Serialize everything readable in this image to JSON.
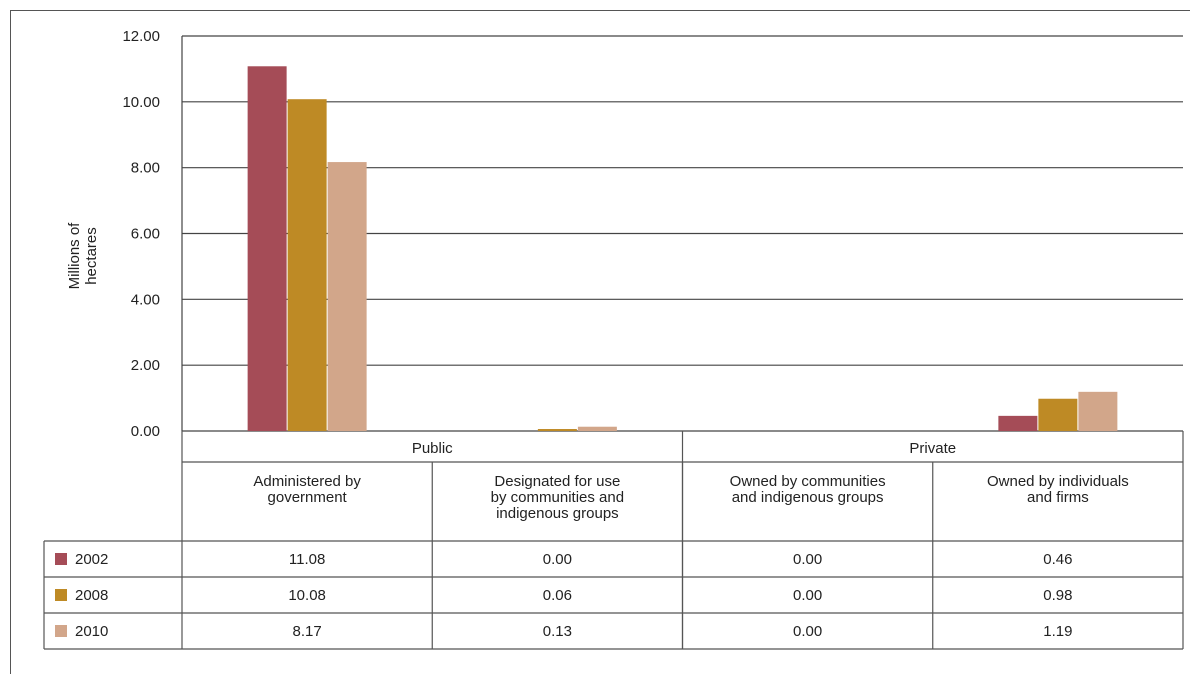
{
  "chart_data": {
    "type": "bar",
    "ylabel": "Millions of hectares",
    "ylim": [
      0,
      12
    ],
    "yticks": [
      "0.00",
      "2.00",
      "4.00",
      "6.00",
      "8.00",
      "10.00",
      "12.00"
    ],
    "groups": [
      {
        "label": "Public",
        "span": 2
      },
      {
        "label": "Private",
        "span": 2
      }
    ],
    "categories": [
      "Administered by government",
      "Designated for use by communities and indigenous groups",
      "Owned by communities and indigenous groups",
      "Owned by individuals and firms"
    ],
    "category_lines": [
      [
        "Administered by",
        "government"
      ],
      [
        "Designated for use",
        "by communities and",
        "indigenous groups"
      ],
      [
        "Owned by communities",
        "and indigenous groups"
      ],
      [
        "Owned by individuals",
        "and firms"
      ]
    ],
    "series": [
      {
        "name": "2002",
        "color": "#A54C57",
        "values": [
          11.08,
          0.0,
          0.0,
          0.46
        ],
        "labels": [
          "11.08",
          "0.00",
          "0.00",
          "0.46"
        ]
      },
      {
        "name": "2008",
        "color": "#BE8A25",
        "values": [
          10.08,
          0.06,
          0.0,
          0.98
        ],
        "labels": [
          "10.08",
          "0.06",
          "0.00",
          "0.98"
        ]
      },
      {
        "name": "2010",
        "color": "#D2A68A",
        "values": [
          8.17,
          0.13,
          0.0,
          1.19
        ],
        "labels": [
          "8.17",
          "0.13",
          "0.00",
          "1.19"
        ]
      }
    ],
    "grid": true,
    "legend": "data-table-left"
  }
}
